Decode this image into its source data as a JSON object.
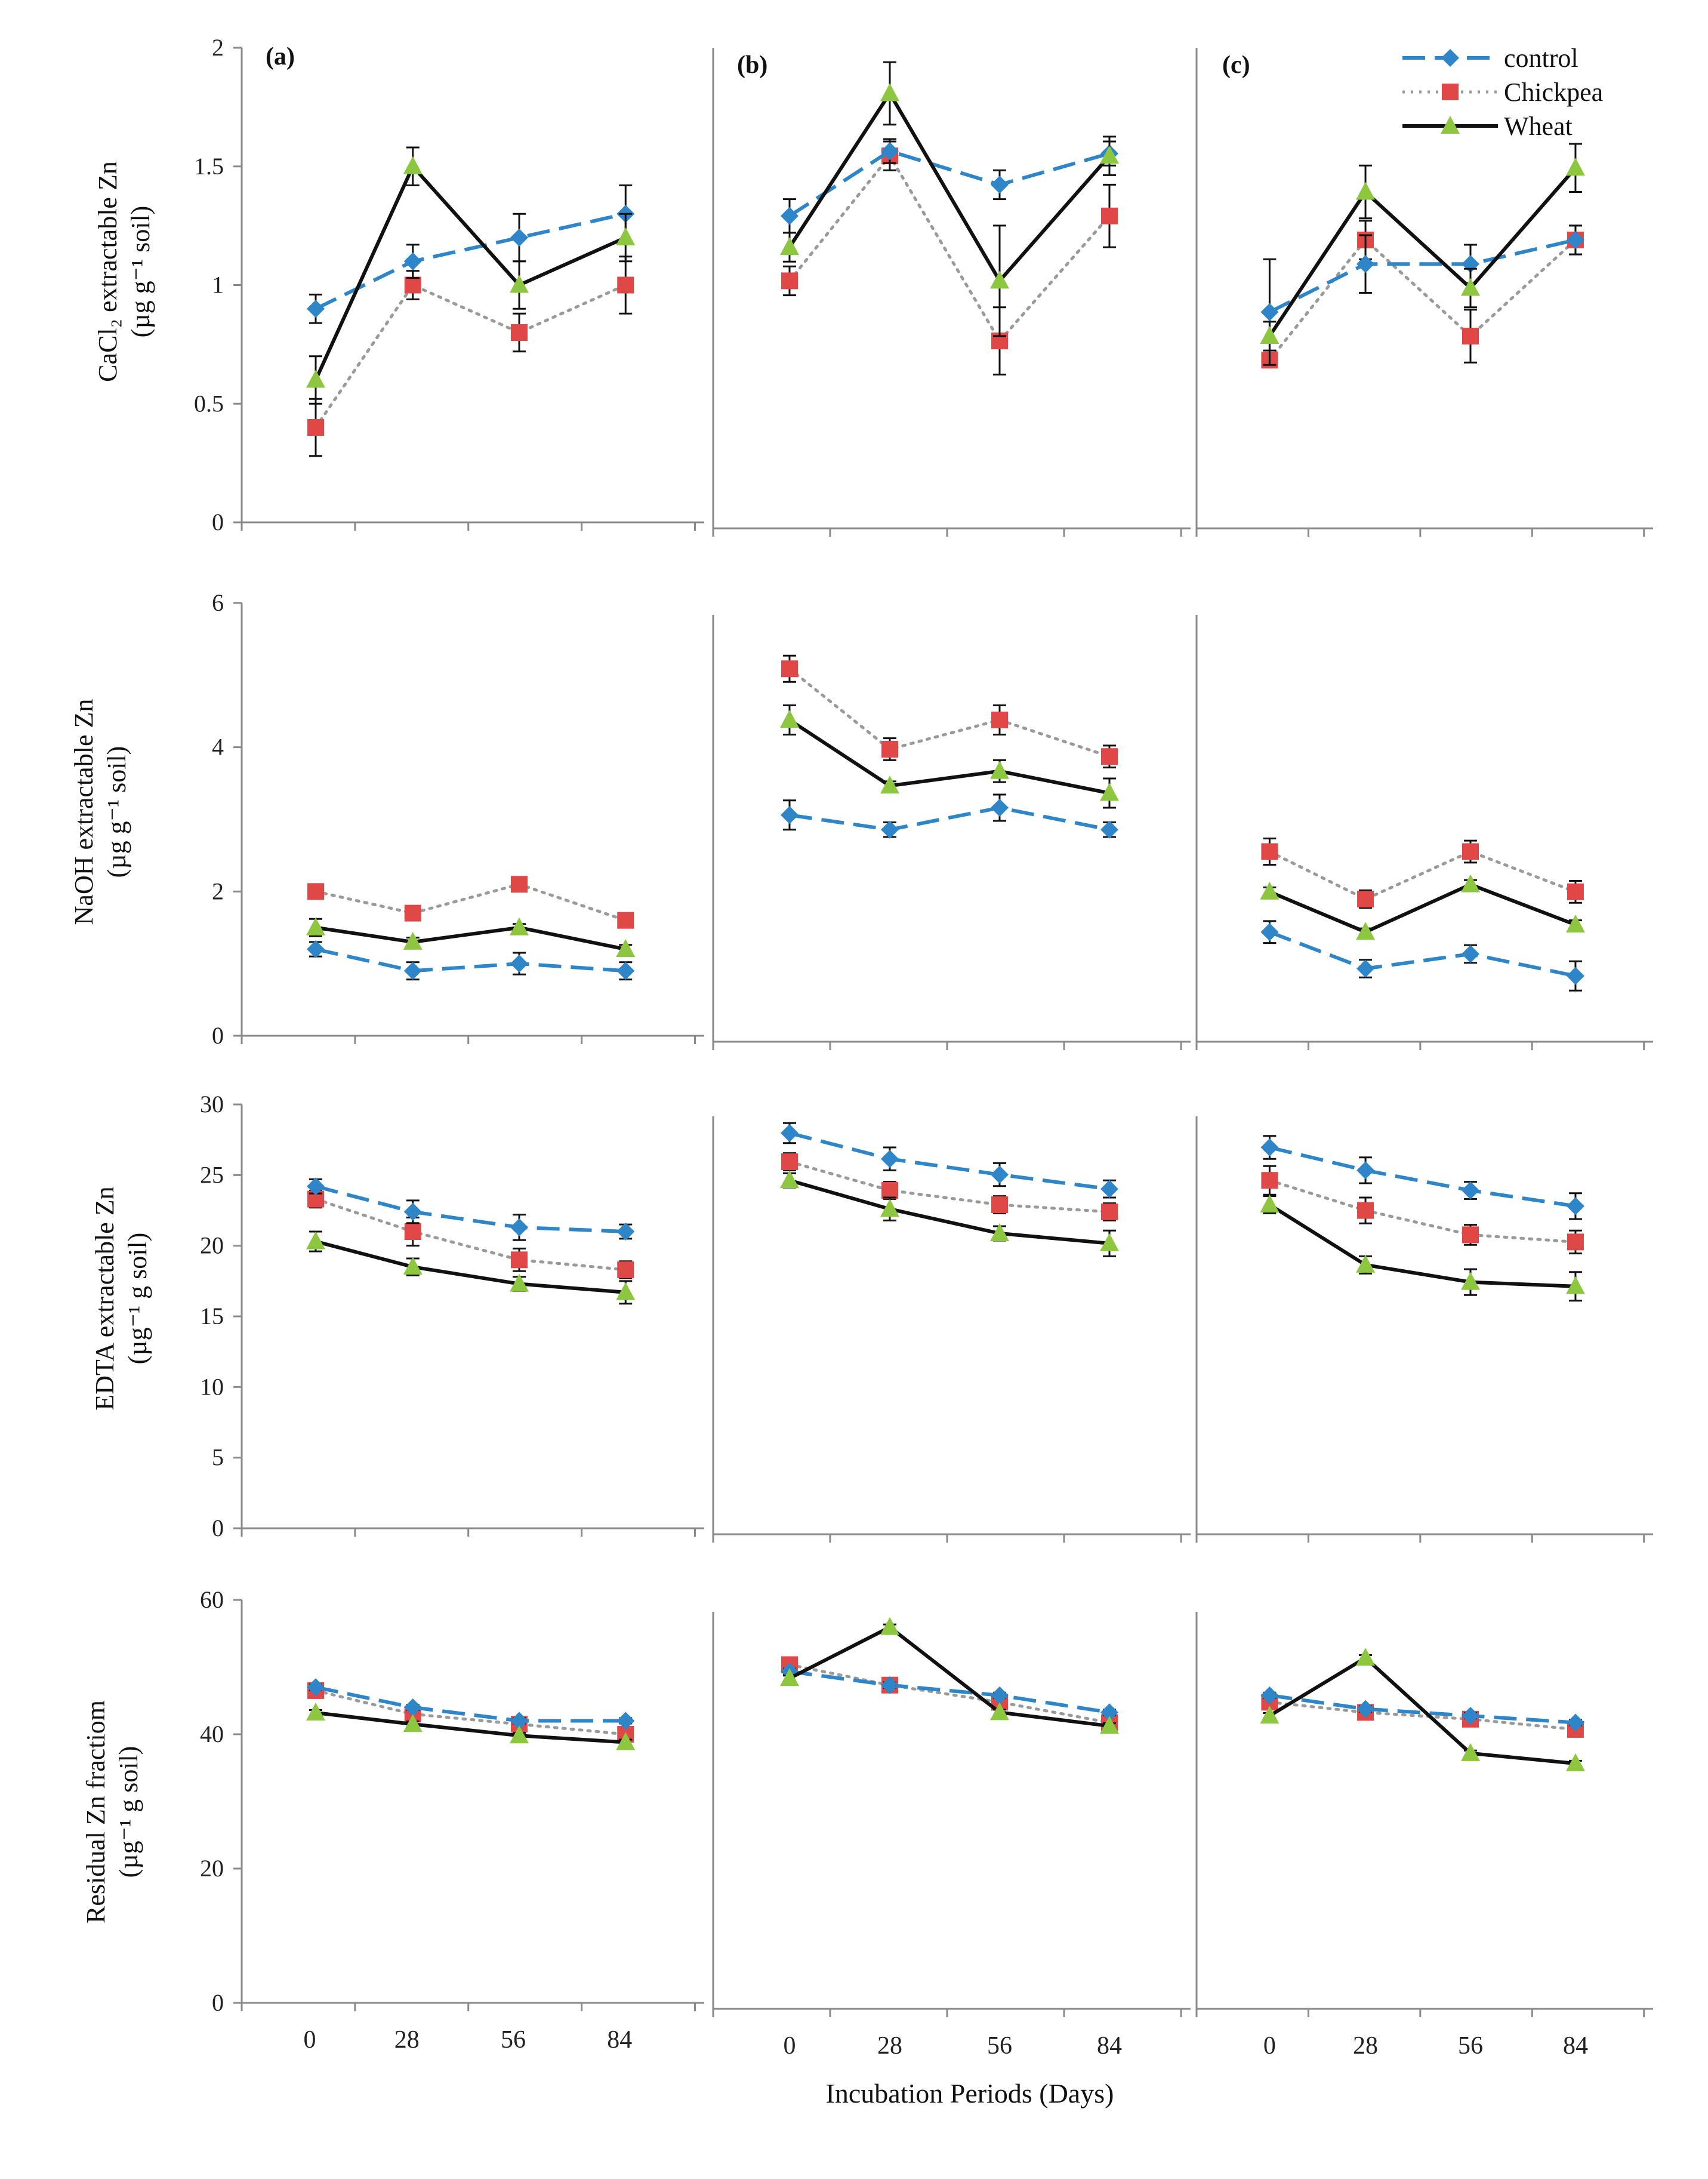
{
  "figure": {
    "panel_labels": [
      "(a)",
      "(b)",
      "(c)"
    ],
    "xlabel": "Incubation Periods (Days)",
    "legend": [
      {
        "name": "control",
        "color": "#2e86c8",
        "marker": "diamond",
        "dash": "dashed"
      },
      {
        "name": "Chickpea",
        "color": "#e04848",
        "marker": "square",
        "dash": "dotted"
      },
      {
        "name": "Wheat",
        "color": "#8dc63f",
        "marker": "triangle",
        "dash": "solid"
      }
    ],
    "line_colors": {
      "control": "#2e86c8",
      "Chickpea": "#9a9a9a",
      "Wheat": "#111111"
    }
  },
  "chart_data": [
    {
      "type": "line",
      "title": "CaCl2 extractable Zn",
      "ylabel": "CaCl2 extractable Zn (µg g-1 soil)",
      "ylabel_line1": "CaCl₂ extractable Zn",
      "ylabel_line2": "(µg g⁻¹ soil)",
      "ylim": [
        0,
        2
      ],
      "yticks": [
        "0",
        "0.5",
        "1",
        "1.5",
        "2"
      ],
      "ytick_values": [
        0,
        0.5,
        1,
        1.5,
        2
      ],
      "x": [
        "0",
        "28",
        "56",
        "84"
      ],
      "panels": [
        {
          "label": "(a)",
          "series": [
            {
              "name": "control",
              "values": [
                0.9,
                1.1,
                1.2,
                1.3
              ],
              "errors": [
                0.06,
                0.07,
                0.1,
                0.12
              ]
            },
            {
              "name": "Chickpea",
              "values": [
                0.4,
                1.0,
                0.8,
                1.0
              ],
              "errors": [
                0.12,
                0.06,
                0.08,
                0.12
              ]
            },
            {
              "name": "Wheat",
              "values": [
                0.6,
                1.5,
                1.0,
                1.2
              ],
              "errors": [
                0.1,
                0.08,
                0.1,
                0.1
              ]
            }
          ]
        },
        {
          "label": "(b)",
          "series": [
            {
              "name": "control",
              "values": [
                1.3,
                1.57,
                1.43,
                1.56
              ],
              "errors": [
                0.07,
                0.05,
                0.06,
                0.05
              ]
            },
            {
              "name": "Chickpea",
              "values": [
                1.03,
                1.55,
                0.78,
                1.3
              ],
              "errors": [
                0.06,
                0.06,
                0.14,
                0.13
              ]
            },
            {
              "name": "Wheat",
              "values": [
                1.17,
                1.81,
                1.03,
                1.55
              ],
              "errors": [
                0.06,
                0.13,
                0.23,
                0.08
              ]
            }
          ]
        },
        {
          "label": "(c)",
          "series": [
            {
              "name": "control",
              "values": [
                0.9,
                1.1,
                1.1,
                1.2
              ],
              "errors": [
                0.22,
                0.12,
                0.08,
                0.06
              ]
            },
            {
              "name": "Chickpea",
              "values": [
                0.7,
                1.2,
                0.8,
                1.2
              ],
              "errors": [
                0.03,
                0.08,
                0.11,
                0.06
              ]
            },
            {
              "name": "Wheat",
              "values": [
                0.8,
                1.4,
                1.0,
                1.5
              ],
              "errors": [
                0.06,
                0.11,
                0.08,
                0.1
              ]
            }
          ]
        }
      ]
    },
    {
      "type": "line",
      "title": "NaOH extractable Zn",
      "ylabel": "NaOH extractable Zn (µg g-1 soil)",
      "ylabel_line1": "NaOH extractable Zn",
      "ylabel_line2": "(µg g⁻¹ soil)",
      "ylim": [
        0,
        6
      ],
      "yticks": [
        "0",
        "2",
        "4",
        "6"
      ],
      "ytick_values": [
        0,
        2,
        4,
        6
      ],
      "x": [
        "0",
        "28",
        "56",
        "84"
      ],
      "panels": [
        {
          "label": "(a)",
          "series": [
            {
              "name": "control",
              "values": [
                1.2,
                0.9,
                1.0,
                0.9
              ],
              "errors": [
                0.1,
                0.12,
                0.15,
                0.12
              ]
            },
            {
              "name": "Chickpea",
              "values": [
                2.0,
                1.7,
                2.1,
                1.6
              ],
              "errors": [
                0.08,
                0.06,
                0.06,
                0.06
              ]
            },
            {
              "name": "Wheat",
              "values": [
                1.5,
                1.3,
                1.5,
                1.2
              ],
              "errors": [
                0.12,
                0.06,
                0.05,
                0.06
              ]
            }
          ]
        },
        {
          "label": "(b)",
          "series": [
            {
              "name": "control",
              "values": [
                3.1,
                2.9,
                3.2,
                2.9
              ],
              "errors": [
                0.2,
                0.1,
                0.18,
                0.1
              ]
            },
            {
              "name": "Chickpea",
              "values": [
                5.1,
                4.0,
                4.4,
                3.9
              ],
              "errors": [
                0.18,
                0.15,
                0.2,
                0.15
              ]
            },
            {
              "name": "Wheat",
              "values": [
                4.4,
                3.5,
                3.7,
                3.4
              ],
              "errors": [
                0.2,
                0.06,
                0.15,
                0.2
              ]
            }
          ]
        },
        {
          "label": "(c)",
          "series": [
            {
              "name": "control",
              "values": [
                1.5,
                1.0,
                1.2,
                0.9
              ],
              "errors": [
                0.15,
                0.12,
                0.12,
                0.2
              ]
            },
            {
              "name": "Chickpea",
              "values": [
                2.6,
                1.95,
                2.6,
                2.05
              ],
              "errors": [
                0.18,
                0.12,
                0.15,
                0.15
              ]
            },
            {
              "name": "Wheat",
              "values": [
                2.05,
                1.5,
                2.15,
                1.6
              ],
              "errors": [
                0.06,
                0.05,
                0.06,
                0.06
              ]
            }
          ]
        }
      ]
    },
    {
      "type": "line",
      "title": "EDTA extractable Zn",
      "ylabel": "EDTA extractable Zn (µg-1 g soil)",
      "ylabel_line1": "EDTA extractable Zn",
      "ylabel_line2": "(µg⁻¹ g soil)",
      "ylim": [
        0,
        30
      ],
      "yticks": [
        "0",
        "5",
        "10",
        "15",
        "20",
        "25",
        "30"
      ],
      "ytick_values": [
        0,
        5,
        10,
        15,
        20,
        25,
        30
      ],
      "x": [
        "0",
        "28",
        "56",
        "84"
      ],
      "panels": [
        {
          "label": "(a)",
          "series": [
            {
              "name": "control",
              "values": [
                24.2,
                22.4,
                21.3,
                21.0
              ],
              "errors": [
                0.5,
                0.8,
                0.9,
                0.5
              ]
            },
            {
              "name": "Chickpea",
              "values": [
                23.3,
                21.0,
                19.0,
                18.3
              ],
              "errors": [
                0.6,
                1.0,
                0.8,
                0.6
              ]
            },
            {
              "name": "Wheat",
              "values": [
                20.3,
                18.5,
                17.3,
                16.7
              ],
              "errors": [
                0.7,
                0.6,
                0.5,
                0.8
              ]
            }
          ]
        },
        {
          "label": "(b)",
          "series": [
            {
              "name": "control",
              "values": [
                28.0,
                26.2,
                25.1,
                24.1
              ],
              "errors": [
                0.7,
                0.8,
                0.8,
                0.6
              ]
            },
            {
              "name": "Chickpea",
              "values": [
                26.0,
                24.0,
                23.0,
                22.5
              ],
              "errors": [
                0.6,
                0.6,
                0.6,
                0.6
              ]
            },
            {
              "name": "Wheat",
              "values": [
                24.7,
                22.7,
                21.0,
                20.3
              ],
              "errors": [
                0.5,
                0.8,
                0.5,
                0.9
              ]
            }
          ]
        },
        {
          "label": "(c)",
          "series": [
            {
              "name": "control",
              "values": [
                27.0,
                25.4,
                24.0,
                22.9
              ],
              "errors": [
                0.8,
                0.9,
                0.6,
                0.9
              ]
            },
            {
              "name": "Chickpea",
              "values": [
                24.7,
                22.6,
                20.9,
                20.4
              ],
              "errors": [
                1.0,
                0.9,
                0.7,
                0.8
              ]
            },
            {
              "name": "Wheat",
              "values": [
                23.0,
                18.8,
                17.6,
                17.3
              ],
              "errors": [
                0.6,
                0.6,
                0.9,
                1.0
              ]
            }
          ]
        }
      ]
    },
    {
      "type": "line",
      "title": "Residual Zn fraction",
      "ylabel": "Residual Zn fractiom (µg-1 g soil)",
      "ylabel_line1": "Residual Zn fractiom",
      "ylabel_line2": "(µg⁻¹ g soil)",
      "ylim": [
        0,
        60
      ],
      "yticks": [
        "0",
        "20",
        "40",
        "60"
      ],
      "ytick_values": [
        0,
        20,
        40,
        60
      ],
      "x": [
        "0",
        "28",
        "56",
        "84"
      ],
      "panels": [
        {
          "label": "(a)",
          "series": [
            {
              "name": "control",
              "values": [
                47.0,
                44.0,
                42.0,
                42.0
              ],
              "errors": [
                0.4,
                0.4,
                0.4,
                0.4
              ]
            },
            {
              "name": "Chickpea",
              "values": [
                46.5,
                43.0,
                41.5,
                40.0
              ],
              "errors": [
                0.4,
                0.4,
                0.4,
                0.4
              ]
            },
            {
              "name": "Wheat",
              "values": [
                43.2,
                41.5,
                39.8,
                38.8
              ],
              "errors": [
                0.4,
                0.4,
                0.4,
                0.4
              ]
            }
          ]
        },
        {
          "label": "(b)",
          "series": [
            {
              "name": "control",
              "values": [
                49.5,
                47.5,
                46.0,
                43.5
              ],
              "errors": [
                0.4,
                0.4,
                0.4,
                0.4
              ]
            },
            {
              "name": "Chickpea",
              "values": [
                50.5,
                47.5,
                45.0,
                42.0
              ],
              "errors": [
                0.4,
                0.4,
                0.4,
                0.4
              ]
            },
            {
              "name": "Wheat",
              "values": [
                48.5,
                56.0,
                43.5,
                41.5
              ],
              "errors": [
                0.4,
                0.4,
                0.4,
                0.4
              ]
            }
          ]
        },
        {
          "label": "(c)",
          "series": [
            {
              "name": "control",
              "values": [
                46.0,
                44.0,
                43.0,
                42.0
              ],
              "errors": [
                0.4,
                0.4,
                0.4,
                0.4
              ]
            },
            {
              "name": "Chickpea",
              "values": [
                45.0,
                43.5,
                42.5,
                41.0
              ],
              "errors": [
                0.4,
                0.4,
                0.4,
                0.4
              ]
            },
            {
              "name": "Wheat",
              "values": [
                43.0,
                51.5,
                37.5,
                36.0
              ],
              "errors": [
                0.4,
                0.4,
                0.4,
                0.4
              ]
            }
          ]
        }
      ]
    }
  ]
}
